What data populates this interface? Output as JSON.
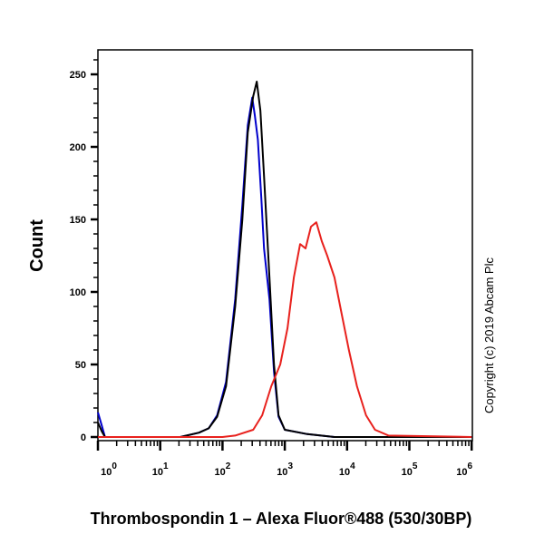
{
  "chart_data": {
    "type": "line",
    "title": "",
    "xlabel": "Thrombospondin 1 – Alexa Fluor®488 (530/30BP)",
    "ylabel": "Count",
    "x_scale": "log",
    "xlim": [
      1,
      1000000
    ],
    "ylim": [
      0,
      267
    ],
    "x_ticks": [
      {
        "base": "10",
        "exp": "0",
        "value": 1
      },
      {
        "base": "10",
        "exp": "1",
        "value": 10
      },
      {
        "base": "10",
        "exp": "2",
        "value": 100
      },
      {
        "base": "10",
        "exp": "3",
        "value": 1000
      },
      {
        "base": "10",
        "exp": "4",
        "value": 10000
      },
      {
        "base": "10",
        "exp": "5",
        "value": 100000
      },
      {
        "base": "10",
        "exp": "6",
        "value": 1000000
      }
    ],
    "y_ticks": [
      "0",
      "50",
      "100",
      "150",
      "200",
      "250"
    ],
    "grid": false,
    "legend": "none",
    "annotation": "Copyright (c) 2019 Abcam Plc",
    "series": [
      {
        "color": "#0000cc",
        "x": [
          1,
          1.15,
          1.3,
          21,
          42,
          60,
          82,
          114,
          160,
          208,
          255,
          300,
          330,
          370,
          420,
          464,
          567,
          670,
          793,
          1000,
          2300,
          6270,
          1000000
        ],
        "y": [
          17,
          8,
          0,
          0,
          3,
          6,
          15,
          38,
          95,
          160,
          215,
          234,
          222,
          205,
          165,
          130,
          95,
          45,
          14,
          5,
          2,
          0,
          0
        ]
      },
      {
        "color": "#000000",
        "x": [
          1,
          1.15,
          1.3,
          21,
          42,
          60,
          82,
          114,
          160,
          208,
          255,
          311,
          355,
          406,
          464,
          567,
          670,
          793,
          1000,
          2300,
          6270,
          1000000
        ],
        "y": [
          10,
          4,
          0,
          0,
          3,
          6,
          14,
          35,
          90,
          150,
          210,
          235,
          245,
          225,
          180,
          110,
          50,
          15,
          5,
          2,
          0,
          0
        ]
      },
      {
        "color": "#e8211d",
        "x": [
          1,
          100,
          160,
          311,
          434,
          607,
          847,
          1105,
          1396,
          1763,
          2153,
          2630,
          3213,
          3925,
          4796,
          6270,
          8180,
          10690,
          14430,
          20140,
          28120,
          46400,
          1000000
        ],
        "y": [
          0,
          0,
          1,
          5,
          15,
          35,
          50,
          75,
          110,
          133,
          130,
          145,
          148,
          135,
          125,
          110,
          85,
          60,
          35,
          15,
          5,
          1,
          0
        ]
      }
    ]
  }
}
